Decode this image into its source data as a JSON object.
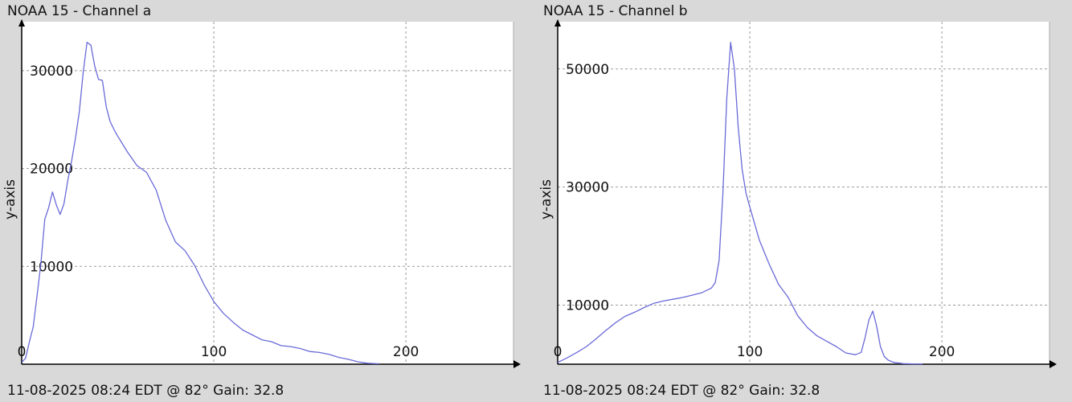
{
  "colors": {
    "background": "#d9d9d9",
    "plot": "#ffffff",
    "line": "#6a6ad8",
    "grid": "#9a9a9a",
    "axis": "#000000"
  },
  "chart_data": [
    {
      "type": "line",
      "title": "NOAA 15 - Channel a",
      "ylabel": "y-axis",
      "footer": "11-08-2025 08:24 EDT @ 82° Gain: 32.8",
      "xlim": [
        0,
        256
      ],
      "ylim": [
        0,
        35000
      ],
      "xticks": [
        "0",
        "100",
        "200"
      ],
      "yticks": [
        "10000",
        "20000",
        "30000"
      ],
      "grid": true,
      "series": [
        {
          "x": [
            0,
            2,
            4,
            6,
            8,
            10,
            12,
            14,
            16,
            18,
            20,
            22,
            24,
            26,
            28,
            30,
            32,
            34,
            36,
            38,
            40,
            42,
            44,
            46,
            48,
            50,
            55,
            60,
            65,
            70,
            75,
            80,
            85,
            90,
            95,
            100,
            105,
            110,
            115,
            120,
            125,
            130,
            135,
            140,
            145,
            150,
            155,
            160,
            165,
            170,
            175,
            180,
            185,
            186
          ],
          "y": [
            200,
            600,
            2300,
            3800,
            7000,
            10300,
            14800,
            16000,
            17600,
            16300,
            15300,
            16400,
            18800,
            20800,
            23100,
            25800,
            29800,
            32900,
            32600,
            30500,
            29100,
            29000,
            26300,
            24800,
            24000,
            23300,
            21700,
            20300,
            19600,
            17800,
            14700,
            12500,
            11600,
            10100,
            8100,
            6400,
            5200,
            4300,
            3500,
            3000,
            2500,
            2300,
            1900,
            1800,
            1600,
            1300,
            1200,
            1000,
            700,
            500,
            250,
            100,
            50,
            50
          ]
        }
      ]
    },
    {
      "type": "line",
      "title": "NOAA 15 - Channel b",
      "ylabel": "y-axis",
      "footer": "11-08-2025 08:24 EDT @ 82° Gain: 32.8",
      "xlim": [
        0,
        256
      ],
      "ylim": [
        0,
        58000
      ],
      "xticks": [
        "0",
        "100",
        "200"
      ],
      "yticks": [
        "10000",
        "30000",
        "50000"
      ],
      "grid": true,
      "series": [
        {
          "x": [
            0,
            5,
            10,
            15,
            20,
            25,
            30,
            35,
            40,
            45,
            50,
            55,
            60,
            65,
            70,
            75,
            80,
            82,
            84,
            86,
            88,
            90,
            92,
            94,
            96,
            98,
            100,
            105,
            110,
            115,
            120,
            125,
            130,
            135,
            140,
            145,
            150,
            155,
            158,
            160,
            162,
            164,
            166,
            168,
            170,
            172,
            175,
            180,
            185,
            190
          ],
          "y": [
            300,
            1100,
            2000,
            3000,
            4300,
            5700,
            7000,
            8100,
            8800,
            9600,
            10300,
            10700,
            11000,
            11300,
            11700,
            12100,
            12900,
            13800,
            17500,
            29000,
            45000,
            54500,
            50000,
            40000,
            33000,
            29000,
            26600,
            21000,
            17000,
            13500,
            11300,
            8200,
            6200,
            4800,
            3900,
            3000,
            1900,
            1600,
            2000,
            4500,
            7500,
            9000,
            6500,
            3000,
            1300,
            700,
            300,
            100,
            50,
            50
          ]
        }
      ]
    }
  ]
}
